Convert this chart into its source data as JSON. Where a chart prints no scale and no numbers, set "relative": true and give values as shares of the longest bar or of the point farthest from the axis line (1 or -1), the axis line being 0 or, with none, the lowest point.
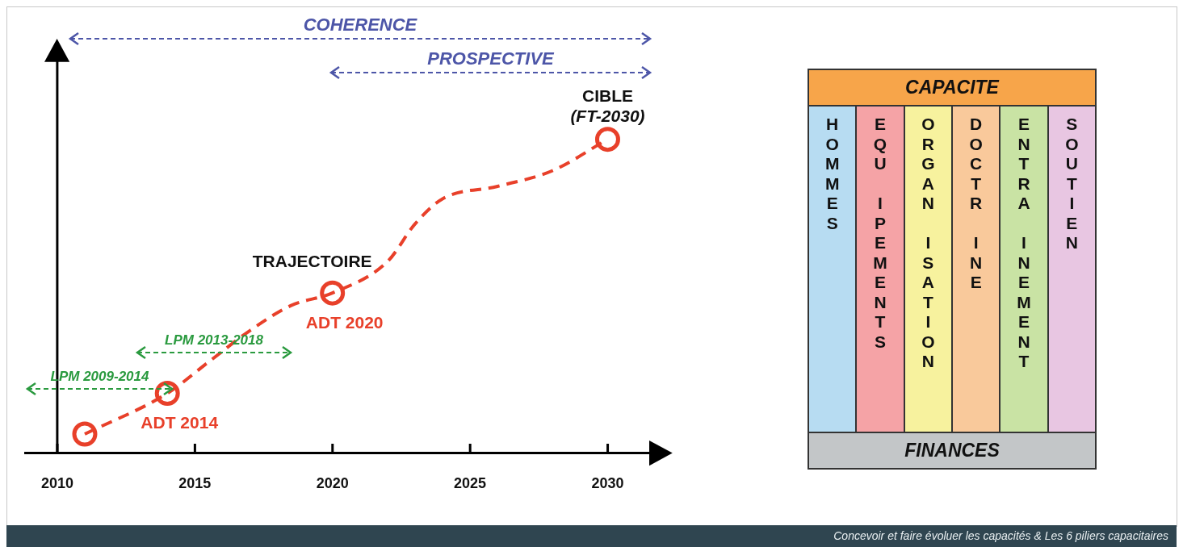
{
  "chart_data": [
    {
      "type": "line",
      "relative": true,
      "xlim": [
        2008.8,
        2031.6
      ],
      "xticks": [
        2010,
        2015,
        2020,
        2025,
        2030
      ],
      "legend": false,
      "series": [
        {
          "type": "line",
          "color": "#e8402a",
          "line_style": "dashed",
          "marker": "none",
          "x": [
            2011,
            2014,
            2015.5,
            2017,
            2018.5,
            2020,
            2022,
            2023,
            2024,
            2026,
            2028,
            2030
          ],
          "values": [
            0.06,
            0.19,
            0.29,
            0.39,
            0.47,
            0.51,
            0.61,
            0.73,
            0.81,
            0.85,
            0.9,
            1
          ]
        },
        {
          "type": "scatter",
          "color": "#e8402a",
          "marker": "circle",
          "x": [
            2011,
            2014,
            2020,
            2030
          ],
          "values": [
            0.06,
            0.19,
            0.51,
            1
          ]
        }
      ],
      "annotations": [
        "COHERENCE",
        "PROSPECTIVE",
        "LPM 2009-2014",
        "LPM 2013-2018",
        {
          "text": "ADT 2014",
          "x": 2014,
          "y": 0.19
        },
        {
          "text": "ADT 2020",
          "x": 2020,
          "y": 0.51
        },
        {
          "text": "TRAJECTOIRE",
          "x": 2020,
          "y": 0.51
        },
        {
          "text": "CIBLE",
          "x": 2030,
          "y": 1
        },
        {
          "text": "(FT-2030)",
          "x": 2030,
          "y": 1
        },
        "Concevoir et faire évoluer les capacités & Les 6 piliers capacitaires"
      ]
    },
    {
      "type": "other",
      "title": "CAPACITE",
      "categories": [
        "HOMMES",
        "EQU IPEMENTS",
        "ORGAN ISATION",
        "DOCTR INE",
        "ENTRA INEMENT",
        "SOUTIEN"
      ],
      "colors": [
        "#b7dcf2",
        "#f5a3a6",
        "#f7f29e",
        "#f9c99b",
        "#c9e3a4",
        "#e8c6e2"
      ],
      "annotations": [
        "FINANCES"
      ]
    }
  ]
}
